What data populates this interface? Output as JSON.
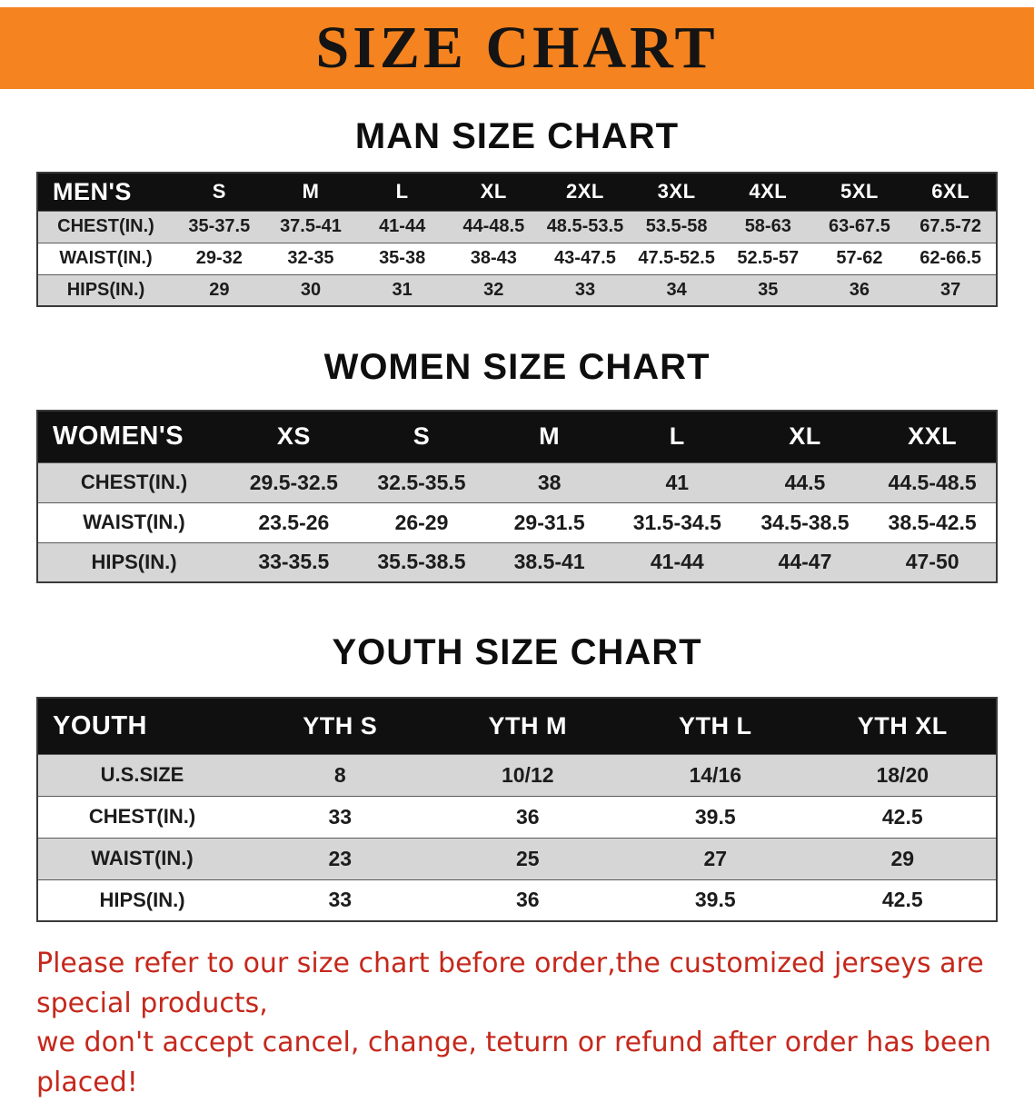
{
  "banner": {
    "title": "SIZE CHART",
    "bg_color": "#f5831f",
    "text_color": "#141414"
  },
  "sections": [
    {
      "heading": "MAN SIZE CHART",
      "table": {
        "corner_label": "MEN'S",
        "columns": [
          "S",
          "M",
          "L",
          "XL",
          "2XL",
          "3XL",
          "4XL",
          "5XL",
          "6XL"
        ],
        "rows": [
          {
            "label": "CHEST(IN.)",
            "values": [
              "35-37.5",
              "37.5-41",
              "41-44",
              "44-48.5",
              "48.5-53.5",
              "53.5-58",
              "58-63",
              "63-67.5",
              "67.5-72"
            ]
          },
          {
            "label": "WAIST(IN.)",
            "values": [
              "29-32",
              "32-35",
              "35-38",
              "38-43",
              "43-47.5",
              "47.5-52.5",
              "52.5-57",
              "57-62",
              "62-66.5"
            ]
          },
          {
            "label": "HIPS(IN.)",
            "values": [
              "29",
              "30",
              "31",
              "32",
              "33",
              "34",
              "35",
              "36",
              "37"
            ]
          }
        ]
      }
    },
    {
      "heading": "WOMEN SIZE CHART",
      "table": {
        "corner_label": "WOMEN'S",
        "columns": [
          "XS",
          "S",
          "M",
          "L",
          "XL",
          "XXL"
        ],
        "rows": [
          {
            "label": "CHEST(IN.)",
            "values": [
              "29.5-32.5",
              "32.5-35.5",
              "38",
              "41",
              "44.5",
              "44.5-48.5"
            ]
          },
          {
            "label": "WAIST(IN.)",
            "values": [
              "23.5-26",
              "26-29",
              "29-31.5",
              "31.5-34.5",
              "34.5-38.5",
              "38.5-42.5"
            ]
          },
          {
            "label": "HIPS(IN.)",
            "values": [
              "33-35.5",
              "35.5-38.5",
              "38.5-41",
              "41-44",
              "44-47",
              "47-50"
            ]
          }
        ]
      }
    },
    {
      "heading": "YOUTH SIZE CHART",
      "table": {
        "corner_label": "YOUTH",
        "columns": [
          "YTH S",
          "YTH M",
          "YTH L",
          "YTH XL"
        ],
        "rows": [
          {
            "label": "U.S.SIZE",
            "values": [
              "8",
              "10/12",
              "14/16",
              "18/20"
            ]
          },
          {
            "label": "CHEST(IN.)",
            "values": [
              "33",
              "36",
              "39.5",
              "42.5"
            ]
          },
          {
            "label": "WAIST(IN.)",
            "values": [
              "23",
              "25",
              "27",
              "29"
            ]
          },
          {
            "label": "HIPS(IN.)",
            "values": [
              "33",
              "36",
              "39.5",
              "42.5"
            ]
          }
        ]
      }
    }
  ],
  "footer": {
    "lines": [
      "Please refer to our size chart before order,the customized jerseys are special products,",
      "we don't accept cancel, change, teturn or refund after order has been placed!"
    ],
    "color": "#c5281c"
  }
}
